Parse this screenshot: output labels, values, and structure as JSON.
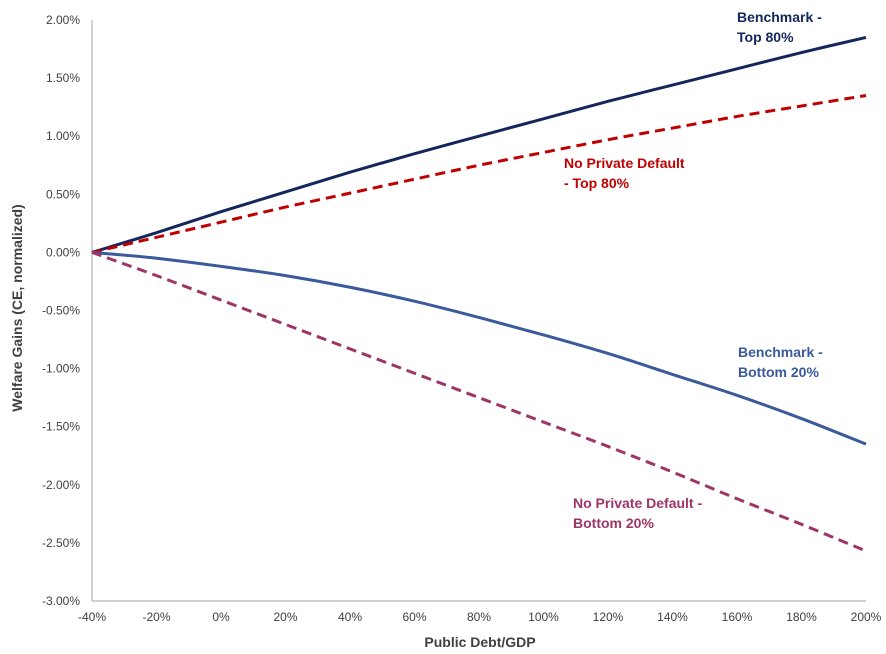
{
  "chart_data": {
    "type": "line",
    "xlabel": "Public Debt/GDP",
    "ylabel": "Welfare Gains (CE, normalized)",
    "x_ticks": [
      "-40%",
      "-20%",
      "0%",
      "20%",
      "40%",
      "60%",
      "80%",
      "100%",
      "120%",
      "140%",
      "160%",
      "180%",
      "200%"
    ],
    "y_ticks": [
      "2.00%",
      "1.50%",
      "1.00%",
      "0.50%",
      "0.00%",
      "-0.50%",
      "-1.00%",
      "-1.50%",
      "-2.00%",
      "-2.50%",
      "-3.00%"
    ],
    "xlim": [
      -40,
      200
    ],
    "ylim": [
      -3.0,
      2.0
    ],
    "grid": false,
    "legend": "none (direct labels)",
    "x": [
      -40,
      -20,
      0,
      20,
      40,
      60,
      80,
      100,
      120,
      140,
      160,
      180,
      200
    ],
    "series": [
      {
        "key": "bench_top",
        "label_lines": [
          "Benchmark -",
          "Top 80%"
        ],
        "color": "#13275c",
        "dash": "solid",
        "values": [
          0.0,
          0.17,
          0.35,
          0.52,
          0.69,
          0.85,
          1.0,
          1.15,
          1.3,
          1.44,
          1.58,
          1.72,
          1.85
        ]
      },
      {
        "key": "npd_top",
        "label_lines": [
          "No Private Default",
          "- Top 80%"
        ],
        "color": "#c00000",
        "dash": "dashed",
        "values": [
          0.0,
          0.13,
          0.26,
          0.39,
          0.51,
          0.63,
          0.75,
          0.86,
          0.97,
          1.07,
          1.17,
          1.26,
          1.35
        ]
      },
      {
        "key": "bench_bottom",
        "label_lines": [
          "Benchmark -",
          "Bottom 20%"
        ],
        "color": "#3a5a9b",
        "dash": "solid",
        "values": [
          0.0,
          -0.05,
          -0.12,
          -0.2,
          -0.3,
          -0.42,
          -0.56,
          -0.71,
          -0.87,
          -1.05,
          -1.23,
          -1.43,
          -1.65
        ]
      },
      {
        "key": "npd_bottom",
        "label_lines": [
          "No Private Default  -",
          "Bottom 20%"
        ],
        "color": "#9e3567",
        "dash": "dashed",
        "values": [
          0.0,
          -0.2,
          -0.41,
          -0.62,
          -0.83,
          -1.04,
          -1.25,
          -1.46,
          -1.67,
          -1.89,
          -2.12,
          -2.34,
          -2.57
        ]
      }
    ]
  }
}
